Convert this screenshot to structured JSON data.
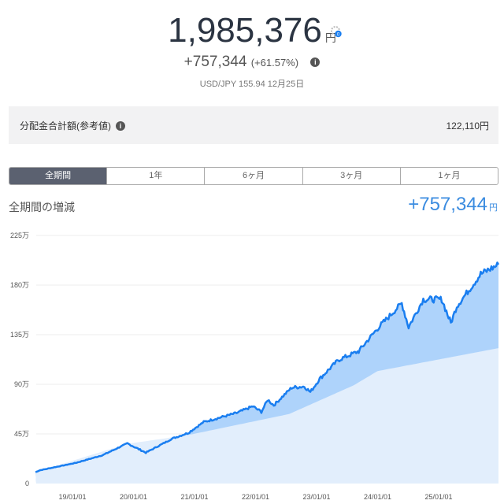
{
  "header": {
    "total_value": "1,985,376",
    "currency": "円",
    "gain": "+757,344",
    "gain_pct": "(+61.57%)",
    "fx_rate": "USD/JPY 155.94 12月25日",
    "settings_icon": "gear-badge-icon",
    "info_icon": "info-icon"
  },
  "distribution": {
    "label": "分配金合計額(参考値)",
    "value": "122,110円",
    "info_icon": "info-icon"
  },
  "tabs": [
    {
      "label": "全期間",
      "active": true
    },
    {
      "label": "1年",
      "active": false
    },
    {
      "label": "6ヶ月",
      "active": false
    },
    {
      "label": "3ヶ月",
      "active": false
    },
    {
      "label": "1ヶ月",
      "active": false
    }
  ],
  "period": {
    "label": "全期間の増減",
    "value": "+757,344",
    "unit": "円"
  },
  "colors": {
    "line": "#1a7ef0",
    "gain_fill": "#aed3fb",
    "principal_fill": "#e2eefc",
    "accent": "#3b8ce0",
    "active_tab": "#5b6170"
  },
  "chart_data": {
    "type": "area",
    "ylim": [
      0,
      2250000
    ],
    "yticks": [
      {
        "v": 0,
        "label": "0"
      },
      {
        "v": 450000,
        "label": "45万"
      },
      {
        "v": 900000,
        "label": "90万"
      },
      {
        "v": 1350000,
        "label": "135万"
      },
      {
        "v": 1800000,
        "label": "180万"
      },
      {
        "v": 2250000,
        "label": "225万"
      }
    ],
    "xticks": [
      "19/01/01",
      "20/01/01",
      "21/01/01",
      "22/01/01",
      "23/01/01",
      "24/01/01",
      "25/01/01"
    ],
    "grid": true,
    "series": [
      {
        "role": "valuation",
        "points": [
          [
            "2018-05-25",
            103000
          ],
          [
            "2018-06-20",
            120000
          ],
          [
            "2019-01-20",
            187000
          ],
          [
            "2019-07-01",
            257000
          ],
          [
            "2019-11-25",
            364000
          ],
          [
            "2020-03-15",
            280000
          ],
          [
            "2020-08-25",
            410000
          ],
          [
            "2020-11-25",
            460000
          ],
          [
            "2021-02-25",
            558000
          ],
          [
            "2021-09-10",
            640000
          ],
          [
            "2021-12-15",
            700000
          ],
          [
            "2022-02-05",
            650000
          ],
          [
            "2022-03-15",
            760000
          ],
          [
            "2022-04-20",
            710000
          ],
          [
            "2022-08-05",
            870000
          ],
          [
            "2022-10-20",
            880000
          ],
          [
            "2022-11-25",
            830000
          ],
          [
            "2023-01-20",
            950000
          ],
          [
            "2023-05-10",
            1120000
          ],
          [
            "2023-09-10",
            1200000
          ],
          [
            "2024-01-01",
            1407000
          ],
          [
            "2024-05-25",
            1635000
          ],
          [
            "2024-07-05",
            1420000
          ],
          [
            "2024-10-01",
            1670000
          ],
          [
            "2025-01-20",
            1670000
          ],
          [
            "2025-03-15",
            1455000
          ],
          [
            "2025-04-20",
            1610000
          ],
          [
            "2025-07-01",
            1755000
          ],
          [
            "2025-09-10",
            1900000
          ],
          [
            "2025-12-25",
            1985376
          ]
        ]
      },
      {
        "role": "principal",
        "points": [
          [
            "2018-05-25",
            103000
          ],
          [
            "2019-11-25",
            360000
          ],
          [
            "2020-11-25",
            440000
          ],
          [
            "2022-07-20",
            630000
          ],
          [
            "2023-08-10",
            890000
          ],
          [
            "2024-01-01",
            1020000
          ],
          [
            "2025-12-25",
            1228032
          ]
        ]
      }
    ]
  }
}
